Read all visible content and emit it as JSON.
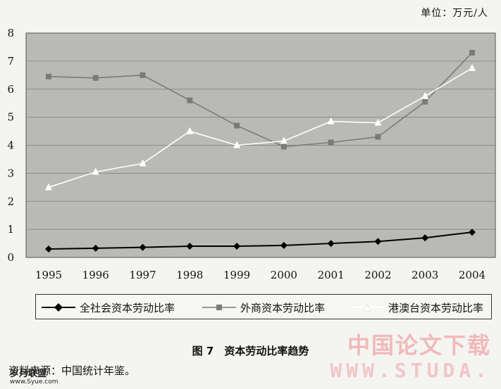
{
  "unit_label": "单位：万元/人",
  "figure_caption": "图 7　资本劳动比率趋势",
  "source_note": "资料来源：中国统计年鉴。",
  "watermark": {
    "cn": "中国论文下载",
    "en": "WWW.STUDA.",
    "site_left": "岁月联盟",
    "site_left_url": "www.Syue.com"
  },
  "chart_data": {
    "type": "line",
    "title": "",
    "xlabel": "",
    "ylabel": "",
    "categories": [
      "1995",
      "1996",
      "1997",
      "1998",
      "1999",
      "2000",
      "2001",
      "2002",
      "2003",
      "2004"
    ],
    "ylim": [
      0,
      8
    ],
    "yticks": [
      0,
      1,
      2,
      3,
      4,
      5,
      6,
      7,
      8
    ],
    "grid": true,
    "legend_position": "bottom",
    "series": [
      {
        "name": "全社会资本劳动比率",
        "marker": "diamond",
        "color": "#000000",
        "values": [
          0.3,
          0.33,
          0.36,
          0.4,
          0.4,
          0.43,
          0.5,
          0.57,
          0.7,
          0.9
        ]
      },
      {
        "name": "外商资本劳动比率",
        "marker": "square",
        "color": "#7a7a7a",
        "values": [
          6.45,
          6.4,
          6.5,
          5.6,
          4.7,
          3.95,
          4.1,
          4.3,
          5.55,
          7.3
        ]
      },
      {
        "name": "港澳台资本劳动比率",
        "marker": "triangle",
        "color": "#ffffff",
        "values": [
          2.5,
          3.05,
          3.35,
          4.5,
          4.0,
          4.15,
          4.85,
          4.8,
          5.75,
          6.75
        ]
      }
    ]
  }
}
